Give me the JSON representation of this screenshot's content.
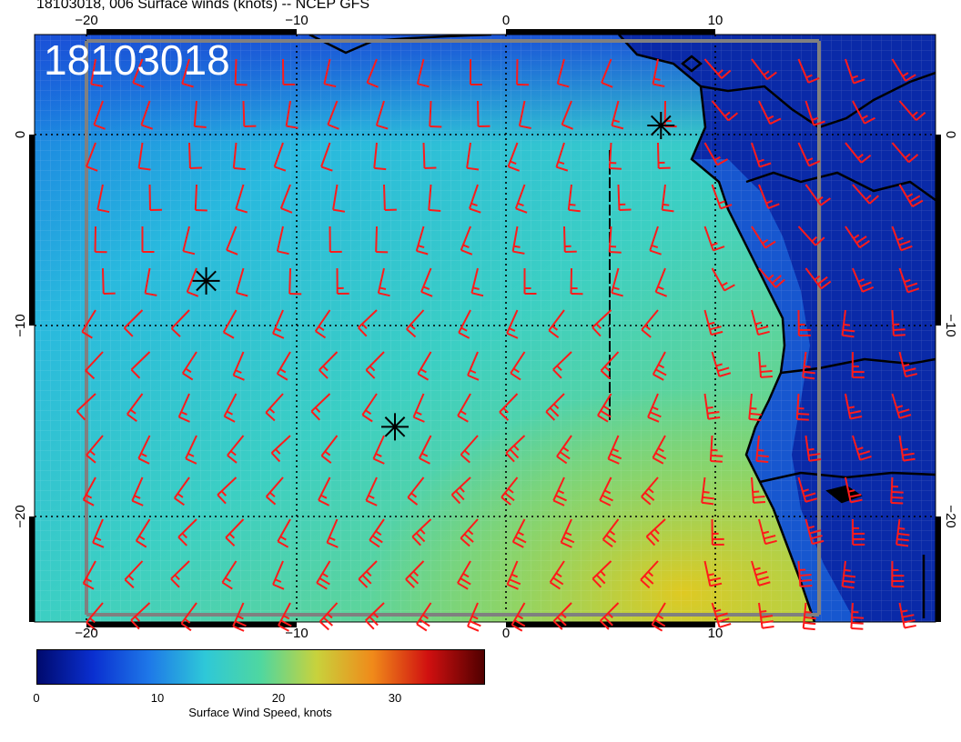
{
  "title": "18103018, 006 Surface winds (knots) -- NCEP GFS",
  "stamp": "18103018",
  "map": {
    "lon_range": [
      -22.5,
      19.5
    ],
    "lat_range": [
      -26,
      5
    ],
    "top_lon_ticks": [
      "−20",
      "−10",
      "0",
      "10"
    ],
    "bottom_lon_ticks": [
      "−20",
      "−10",
      "0",
      "10"
    ],
    "left_lat_ticks": [
      "0",
      "−10",
      "−20"
    ],
    "right_lat_ticks": [
      "0",
      "−10",
      "−20"
    ],
    "storm_markers": [
      {
        "lon": -14.5,
        "lat": -8
      },
      {
        "lon": -5.7,
        "lat": -15.7
      },
      {
        "lon": 6.7,
        "lat": 0.2
      }
    ]
  },
  "colorbar": {
    "label": "Surface Wind Speed, knots",
    "ticks": [
      "0",
      "10",
      "20",
      "30"
    ],
    "range": [
      0,
      37
    ],
    "colors": [
      "#000a6e",
      "#0a2fd0",
      "#1e78e8",
      "#2ec8d8",
      "#4fd7a0",
      "#c8d23c",
      "#f08a1a",
      "#d01010",
      "#500000"
    ]
  }
}
